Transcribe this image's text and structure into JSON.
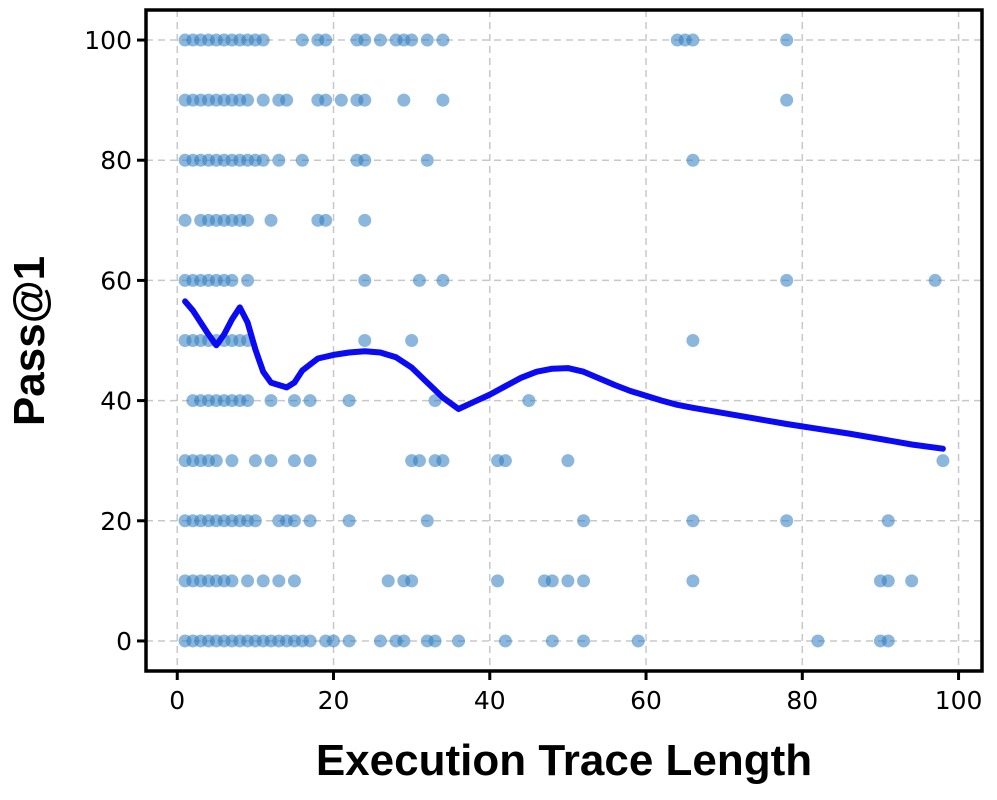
{
  "chart_data": {
    "type": "scatter",
    "title": "",
    "xlabel": "Execution Trace Length",
    "ylabel": "Pass@1",
    "xlim": [
      -4,
      103
    ],
    "ylim": [
      -5,
      105
    ],
    "xticks": [
      0,
      20,
      40,
      60,
      80,
      100
    ],
    "yticks": [
      0,
      20,
      40,
      60,
      80,
      100
    ],
    "grid": true,
    "colors": {
      "points": "#2e7bbf",
      "trend": "#0a0af5"
    },
    "series": [
      {
        "type": "scatter",
        "points": [
          [
            1,
            100
          ],
          [
            2,
            100
          ],
          [
            3,
            100
          ],
          [
            4,
            100
          ],
          [
            5,
            100
          ],
          [
            6,
            100
          ],
          [
            7,
            100
          ],
          [
            8,
            100
          ],
          [
            9,
            100
          ],
          [
            10,
            100
          ],
          [
            11,
            100
          ],
          [
            16,
            100
          ],
          [
            18,
            100
          ],
          [
            19,
            100
          ],
          [
            23,
            100
          ],
          [
            24,
            100
          ],
          [
            26,
            100
          ],
          [
            28,
            100
          ],
          [
            29,
            100
          ],
          [
            30,
            100
          ],
          [
            32,
            100
          ],
          [
            34,
            100
          ],
          [
            64,
            100
          ],
          [
            65,
            100
          ],
          [
            66,
            100
          ],
          [
            78,
            100
          ],
          [
            1,
            90
          ],
          [
            2,
            90
          ],
          [
            3,
            90
          ],
          [
            4,
            90
          ],
          [
            5,
            90
          ],
          [
            6,
            90
          ],
          [
            7,
            90
          ],
          [
            8,
            90
          ],
          [
            9,
            90
          ],
          [
            11,
            90
          ],
          [
            13,
            90
          ],
          [
            14,
            90
          ],
          [
            18,
            90
          ],
          [
            19,
            90
          ],
          [
            21,
            90
          ],
          [
            23,
            90
          ],
          [
            24,
            90
          ],
          [
            29,
            90
          ],
          [
            34,
            90
          ],
          [
            78,
            90
          ],
          [
            1,
            80
          ],
          [
            2,
            80
          ],
          [
            3,
            80
          ],
          [
            4,
            80
          ],
          [
            5,
            80
          ],
          [
            6,
            80
          ],
          [
            7,
            80
          ],
          [
            8,
            80
          ],
          [
            9,
            80
          ],
          [
            10,
            80
          ],
          [
            11,
            80
          ],
          [
            13,
            80
          ],
          [
            16,
            80
          ],
          [
            23,
            80
          ],
          [
            24,
            80
          ],
          [
            32,
            80
          ],
          [
            66,
            80
          ],
          [
            1,
            70
          ],
          [
            3,
            70
          ],
          [
            4,
            70
          ],
          [
            5,
            70
          ],
          [
            6,
            70
          ],
          [
            7,
            70
          ],
          [
            8,
            70
          ],
          [
            9,
            70
          ],
          [
            12,
            70
          ],
          [
            18,
            70
          ],
          [
            19,
            70
          ],
          [
            24,
            70
          ],
          [
            1,
            60
          ],
          [
            2,
            60
          ],
          [
            3,
            60
          ],
          [
            4,
            60
          ],
          [
            5,
            60
          ],
          [
            6,
            60
          ],
          [
            7,
            60
          ],
          [
            9,
            60
          ],
          [
            24,
            60
          ],
          [
            31,
            60
          ],
          [
            34,
            60
          ],
          [
            78,
            60
          ],
          [
            97,
            60
          ],
          [
            1,
            50
          ],
          [
            2,
            50
          ],
          [
            3,
            50
          ],
          [
            4,
            50
          ],
          [
            5,
            50
          ],
          [
            6,
            50
          ],
          [
            7,
            50
          ],
          [
            8,
            50
          ],
          [
            9,
            50
          ],
          [
            24,
            50
          ],
          [
            30,
            50
          ],
          [
            66,
            50
          ],
          [
            2,
            40
          ],
          [
            3,
            40
          ],
          [
            4,
            40
          ],
          [
            5,
            40
          ],
          [
            6,
            40
          ],
          [
            7,
            40
          ],
          [
            8,
            40
          ],
          [
            9,
            40
          ],
          [
            12,
            40
          ],
          [
            15,
            40
          ],
          [
            17,
            40
          ],
          [
            22,
            40
          ],
          [
            33,
            40
          ],
          [
            45,
            40
          ],
          [
            1,
            30
          ],
          [
            2,
            30
          ],
          [
            3,
            30
          ],
          [
            4,
            30
          ],
          [
            5,
            30
          ],
          [
            7,
            30
          ],
          [
            10,
            30
          ],
          [
            12,
            30
          ],
          [
            15,
            30
          ],
          [
            17,
            30
          ],
          [
            30,
            30
          ],
          [
            31,
            30
          ],
          [
            33,
            30
          ],
          [
            34,
            30
          ],
          [
            41,
            30
          ],
          [
            42,
            30
          ],
          [
            50,
            30
          ],
          [
            98,
            30
          ],
          [
            1,
            20
          ],
          [
            2,
            20
          ],
          [
            3,
            20
          ],
          [
            4,
            20
          ],
          [
            5,
            20
          ],
          [
            6,
            20
          ],
          [
            7,
            20
          ],
          [
            8,
            20
          ],
          [
            9,
            20
          ],
          [
            10,
            20
          ],
          [
            13,
            20
          ],
          [
            14,
            20
          ],
          [
            15,
            20
          ],
          [
            17,
            20
          ],
          [
            22,
            20
          ],
          [
            32,
            20
          ],
          [
            52,
            20
          ],
          [
            66,
            20
          ],
          [
            78,
            20
          ],
          [
            91,
            20
          ],
          [
            1,
            10
          ],
          [
            2,
            10
          ],
          [
            3,
            10
          ],
          [
            4,
            10
          ],
          [
            5,
            10
          ],
          [
            6,
            10
          ],
          [
            7,
            10
          ],
          [
            9,
            10
          ],
          [
            11,
            10
          ],
          [
            13,
            10
          ],
          [
            15,
            10
          ],
          [
            27,
            10
          ],
          [
            29,
            10
          ],
          [
            30,
            10
          ],
          [
            41,
            10
          ],
          [
            47,
            10
          ],
          [
            48,
            10
          ],
          [
            50,
            10
          ],
          [
            52,
            10
          ],
          [
            66,
            10
          ],
          [
            90,
            10
          ],
          [
            91,
            10
          ],
          [
            94,
            10
          ],
          [
            1,
            0
          ],
          [
            2,
            0
          ],
          [
            3,
            0
          ],
          [
            4,
            0
          ],
          [
            5,
            0
          ],
          [
            6,
            0
          ],
          [
            7,
            0
          ],
          [
            8,
            0
          ],
          [
            9,
            0
          ],
          [
            10,
            0
          ],
          [
            11,
            0
          ],
          [
            12,
            0
          ],
          [
            13,
            0
          ],
          [
            14,
            0
          ],
          [
            15,
            0
          ],
          [
            16,
            0
          ],
          [
            17,
            0
          ],
          [
            19,
            0
          ],
          [
            20,
            0
          ],
          [
            22,
            0
          ],
          [
            26,
            0
          ],
          [
            28,
            0
          ],
          [
            29,
            0
          ],
          [
            32,
            0
          ],
          [
            33,
            0
          ],
          [
            36,
            0
          ],
          [
            42,
            0
          ],
          [
            48,
            0
          ],
          [
            52,
            0
          ],
          [
            59,
            0
          ],
          [
            82,
            0
          ],
          [
            90,
            0
          ],
          [
            91,
            0
          ]
        ]
      },
      {
        "type": "line",
        "x": [
          1,
          2,
          3,
          4,
          5,
          6,
          7,
          8,
          9,
          10,
          11,
          12,
          14,
          15,
          16,
          18,
          20,
          22,
          24,
          26,
          28,
          30,
          32,
          34,
          36,
          38,
          40,
          42,
          44,
          46,
          48,
          50,
          52,
          54,
          56,
          58,
          60,
          62,
          64,
          66,
          70,
          74,
          78,
          82,
          86,
          90,
          94,
          98
        ],
        "y": [
          56.5,
          55,
          53,
          51,
          49.2,
          51,
          53.5,
          55.5,
          53,
          48.5,
          44.8,
          43,
          42.2,
          43,
          45,
          47,
          47.6,
          48,
          48.2,
          48,
          47.2,
          45.5,
          43,
          40.5,
          38.6,
          39.8,
          41,
          42.4,
          43.8,
          44.8,
          45.3,
          45.4,
          44.8,
          43.7,
          42.6,
          41.6,
          40.8,
          40,
          39.3,
          38.8,
          37.9,
          37,
          36.1,
          35.3,
          34.5,
          33.6,
          32.7,
          32
        ]
      }
    ]
  }
}
